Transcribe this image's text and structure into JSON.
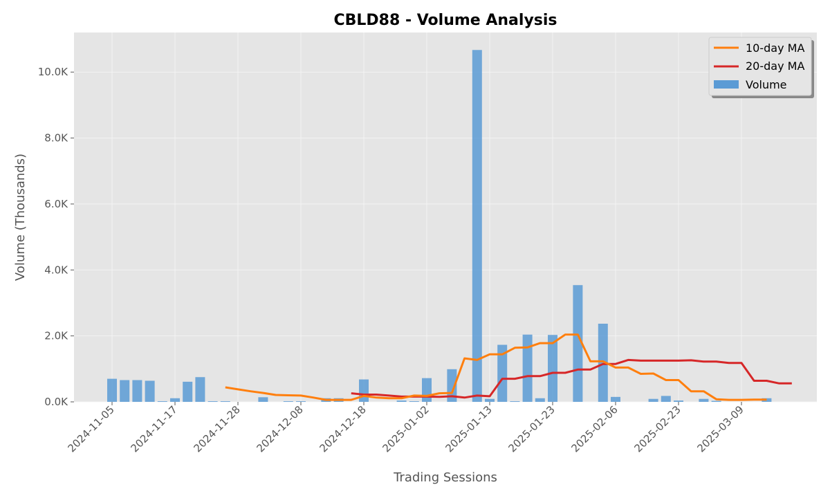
{
  "chart_data": {
    "type": "bar",
    "title": "CBLD88 - Volume Analysis",
    "xlabel": "Trading Sessions",
    "ylabel": "Volume (Thousands)",
    "ylim": [
      0,
      11200
    ],
    "grid": true,
    "legend_position": "top-right",
    "y_ticks": [
      {
        "value": 0,
        "label": "0.0K"
      },
      {
        "value": 2000,
        "label": "2.0K"
      },
      {
        "value": 4000,
        "label": "4.0K"
      },
      {
        "value": 6000,
        "label": "6.0K"
      },
      {
        "value": 8000,
        "label": "8.0K"
      },
      {
        "value": 10000,
        "label": "10.0K"
      }
    ],
    "x_ticks": [
      {
        "index": 0,
        "label": "2024-11-05"
      },
      {
        "index": 5,
        "label": "2024-11-17"
      },
      {
        "index": 10,
        "label": "2024-11-28"
      },
      {
        "index": 15,
        "label": "2024-12-08"
      },
      {
        "index": 20,
        "label": "2024-12-18"
      },
      {
        "index": 25,
        "label": "2025-01-02"
      },
      {
        "index": 30,
        "label": "2025-01-13"
      },
      {
        "index": 35,
        "label": "2025-01-23"
      },
      {
        "index": 40,
        "label": "2025-02-06"
      },
      {
        "index": 45,
        "label": "2025-02-23"
      },
      {
        "index": 50,
        "label": "2025-03-09"
      }
    ],
    "categories_count": 54,
    "series": [
      {
        "name": "Volume",
        "kind": "bar",
        "color": "#5b9bd5",
        "values": [
          700,
          660,
          660,
          640,
          20,
          110,
          610,
          750,
          20,
          20,
          0,
          0,
          140,
          0,
          20,
          20,
          0,
          110,
          110,
          0,
          680,
          0,
          0,
          40,
          20,
          720,
          0,
          990,
          0,
          10670,
          90,
          1730,
          20,
          2040,
          110,
          2030,
          0,
          3540,
          0,
          2370,
          150,
          0,
          0,
          90,
          180,
          40,
          0,
          90,
          30,
          0,
          0,
          0,
          110,
          0
        ]
      },
      {
        "name": "10-day MA",
        "kind": "line",
        "color": "#ff7f0e",
        "start": 9,
        "values": [
          440,
          380,
          320,
          270,
          210,
          200,
          190,
          130,
          60,
          60,
          60,
          180,
          130,
          110,
          110,
          190,
          180,
          260,
          270,
          1320,
          1270,
          1440,
          1440,
          1640,
          1650,
          1780,
          1780,
          2040,
          2040,
          1230,
          1230,
          1040,
          1040,
          850,
          860,
          660,
          660,
          320,
          320,
          80,
          60,
          60,
          70,
          70
        ]
      },
      {
        "name": "20-day MA",
        "kind": "line",
        "color": "#d62728",
        "start": 19,
        "values": [
          260,
          220,
          220,
          190,
          160,
          160,
          160,
          150,
          170,
          130,
          190,
          170,
          700,
          700,
          780,
          780,
          880,
          880,
          980,
          980,
          1150,
          1150,
          1270,
          1250,
          1250,
          1250,
          1250,
          1260,
          1220,
          1220,
          1180,
          1180,
          640,
          640,
          560,
          560
        ]
      }
    ]
  }
}
